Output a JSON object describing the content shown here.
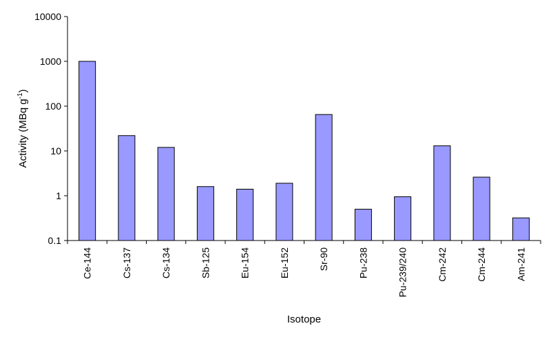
{
  "chart_data": {
    "type": "bar",
    "title": "",
    "xlabel": "Isotope",
    "ylabel": "Activity (MBq g",
    "ylabel_sup": "-1",
    "ylabel_suffix": ")",
    "yscale": "log",
    "ylim": [
      0.1,
      10000
    ],
    "yticks": [
      "0.1",
      "1",
      "10",
      "100",
      "1000",
      "10000"
    ],
    "grid": false,
    "legend": "none",
    "bar_color": "#9999ff",
    "categories": [
      "Ce-144",
      "Cs-137",
      "Cs-134",
      "Sb-125",
      "Eu-154",
      "Eu-152",
      "Sr-90",
      "Pu-238",
      "Pu-239/240",
      "Cm-242",
      "Cm-244",
      "Am-241"
    ],
    "values": [
      1000,
      22,
      12,
      1.6,
      1.4,
      1.9,
      65,
      0.5,
      0.95,
      13,
      2.6,
      0.32
    ]
  }
}
